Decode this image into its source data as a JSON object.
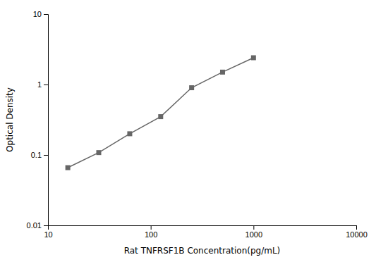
{
  "chart_data": {
    "type": "line",
    "x": [
      15.6,
      31.2,
      62.5,
      125,
      250,
      500,
      1000
    ],
    "values": [
      0.066,
      0.108,
      0.2,
      0.35,
      0.9,
      1.5,
      2.4
    ],
    "color": "#666666",
    "marker": "square",
    "xlabel": "Rat TNFRSF1B Concentration(pg/mL)",
    "ylabel": "Optical Density",
    "log": true,
    "xlim": [
      10,
      10000
    ],
    "ylim": [
      0.01,
      10
    ],
    "xticks": [
      10,
      100,
      1000,
      10000
    ],
    "yticks": [
      0.01,
      0.1,
      1,
      10
    ],
    "grid": false
  }
}
